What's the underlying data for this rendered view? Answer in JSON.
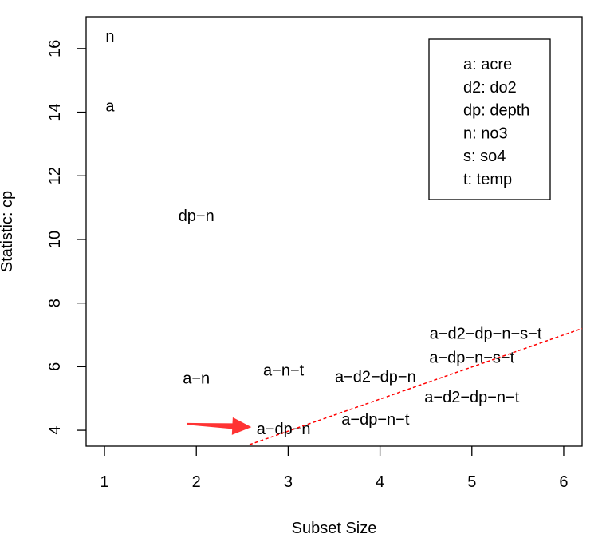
{
  "chart_data": {
    "type": "scatter",
    "xlabel": "Subset Size",
    "ylabel": "Statistic: cp",
    "xlim": [
      0.8,
      6.2
    ],
    "ylim": [
      3.5,
      17.0
    ],
    "x_ticks": [
      1,
      2,
      3,
      4,
      5,
      6
    ],
    "y_ticks": [
      4,
      6,
      8,
      10,
      12,
      14,
      16
    ],
    "grid": false,
    "points": [
      {
        "x": 1.06,
        "y": 16.4,
        "label": "n"
      },
      {
        "x": 1.06,
        "y": 14.2,
        "label": "a"
      },
      {
        "x": 2.0,
        "y": 10.75,
        "label": "dp−n"
      },
      {
        "x": 2.0,
        "y": 5.65,
        "label": "a−n"
      },
      {
        "x": 2.95,
        "y": 4.05,
        "label": "a−dp−n"
      },
      {
        "x": 2.95,
        "y": 5.9,
        "label": "a−n−t"
      },
      {
        "x": 3.95,
        "y": 5.7,
        "label": "a−d2−dp−n"
      },
      {
        "x": 3.95,
        "y": 4.35,
        "label": "a−dp−n−t"
      },
      {
        "x": 5.0,
        "y": 6.3,
        "label": "a−dp−n−s−t"
      },
      {
        "x": 5.0,
        "y": 5.05,
        "label": "a−d2−dp−n−t"
      },
      {
        "x": 5.15,
        "y": 7.05,
        "label": "a−d2−dp−n−s−t"
      }
    ],
    "reference_line": {
      "style": "dashed",
      "color": "#ff0000",
      "from": [
        2.58,
        3.55
      ],
      "to": [
        6.2,
        7.2
      ]
    },
    "arrow": {
      "color": "#ff3333",
      "from": [
        1.9,
        4.2
      ],
      "to": [
        2.6,
        4.1
      ]
    },
    "legend": {
      "placement": "top-right",
      "entries": [
        "a: acre",
        "d2: do2",
        "dp: depth",
        "n: no3",
        "s: so4",
        "t: temp"
      ]
    }
  }
}
